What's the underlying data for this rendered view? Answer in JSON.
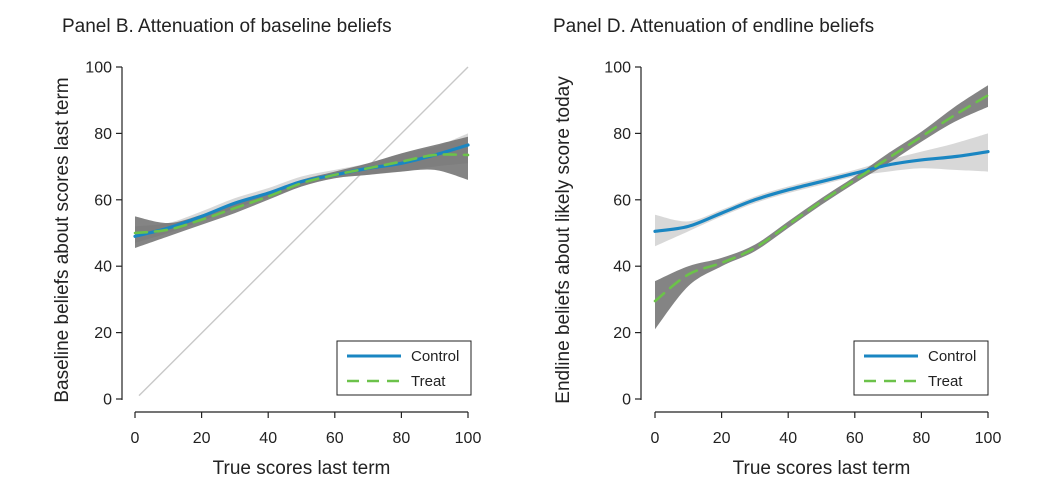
{
  "figure": {
    "colors": {
      "control": "#1a86c2",
      "treat": "#6cc24a",
      "ci_dark": "#6e6e6e",
      "ci_light": "#d4d4d4",
      "diagonal": "#c8c8c8",
      "axis": "#222222"
    }
  },
  "chart_data": [
    {
      "type": "line",
      "title": "Panel B. Attenuation of baseline beliefs",
      "xlabel": "True scores last term",
      "ylabel": "Baseline beliefs about scores last term",
      "xlim": [
        0,
        100
      ],
      "ylim": [
        0,
        100
      ],
      "xticks": [
        0,
        20,
        40,
        60,
        80,
        100
      ],
      "yticks": [
        0,
        20,
        40,
        60,
        80,
        100
      ],
      "grid": false,
      "legend_position": "bottom-right",
      "diagonal_reference": true,
      "x": [
        0,
        10,
        20,
        30,
        40,
        50,
        60,
        70,
        80,
        90,
        100
      ],
      "series": [
        {
          "name": "Control",
          "style": "solid",
          "values": [
            49,
            51.5,
            55,
            59,
            62,
            65.5,
            67.5,
            69.5,
            71,
            73.5,
            76.5
          ],
          "ci_lower": [
            47,
            50,
            53.5,
            57.5,
            60.5,
            64,
            66.5,
            67.5,
            68.5,
            70,
            71
          ],
          "ci_upper": [
            52,
            53,
            56.5,
            60.5,
            63.5,
            67,
            69,
            71,
            74,
            76,
            80
          ]
        },
        {
          "name": "Treat",
          "style": "dashed",
          "values": [
            50,
            51,
            54,
            57.5,
            61,
            65,
            67.5,
            69.5,
            71.5,
            73.5,
            73.5
          ],
          "ci_lower": [
            45.5,
            49,
            52.5,
            56,
            60,
            64,
            66.5,
            67.5,
            68.5,
            69,
            66
          ],
          "ci_upper": [
            55,
            53,
            55.5,
            59,
            62,
            66,
            68.5,
            71,
            74,
            76.5,
            79
          ]
        }
      ]
    },
    {
      "type": "line",
      "title": "Panel D. Attenuation of endline beliefs",
      "xlabel": "True scores last term",
      "ylabel": "Endline beliefs about likely score today",
      "xlim": [
        0,
        100
      ],
      "ylim": [
        0,
        100
      ],
      "xticks": [
        0,
        20,
        40,
        60,
        80,
        100
      ],
      "yticks": [
        0,
        20,
        40,
        60,
        80,
        100
      ],
      "grid": false,
      "legend_position": "bottom-right",
      "diagonal_reference": false,
      "x": [
        0,
        10,
        20,
        30,
        40,
        50,
        60,
        70,
        80,
        90,
        100
      ],
      "series": [
        {
          "name": "Control",
          "style": "solid",
          "values": [
            50.5,
            52,
            56,
            60,
            63,
            65.5,
            68,
            70.5,
            72,
            73,
            74.5
          ],
          "ci_lower": [
            46,
            50.5,
            55,
            59,
            62,
            64.5,
            67,
            68.5,
            69.5,
            69,
            68.5
          ],
          "ci_upper": [
            55.5,
            53.5,
            57,
            61,
            64,
            66.5,
            69,
            72,
            74.5,
            77,
            80
          ]
        },
        {
          "name": "Treat",
          "style": "dashed",
          "values": [
            29.5,
            37.5,
            41,
            45.5,
            52.5,
            59.5,
            66,
            72.5,
            79,
            85.5,
            91.5
          ],
          "ci_lower": [
            21,
            34,
            40,
            44.5,
            51.5,
            58.5,
            65,
            71,
            77.5,
            83.5,
            88
          ],
          "ci_upper": [
            35.5,
            40,
            42.5,
            46.5,
            53.5,
            60.5,
            67,
            74,
            80.5,
            88,
            94.5
          ]
        }
      ]
    }
  ]
}
